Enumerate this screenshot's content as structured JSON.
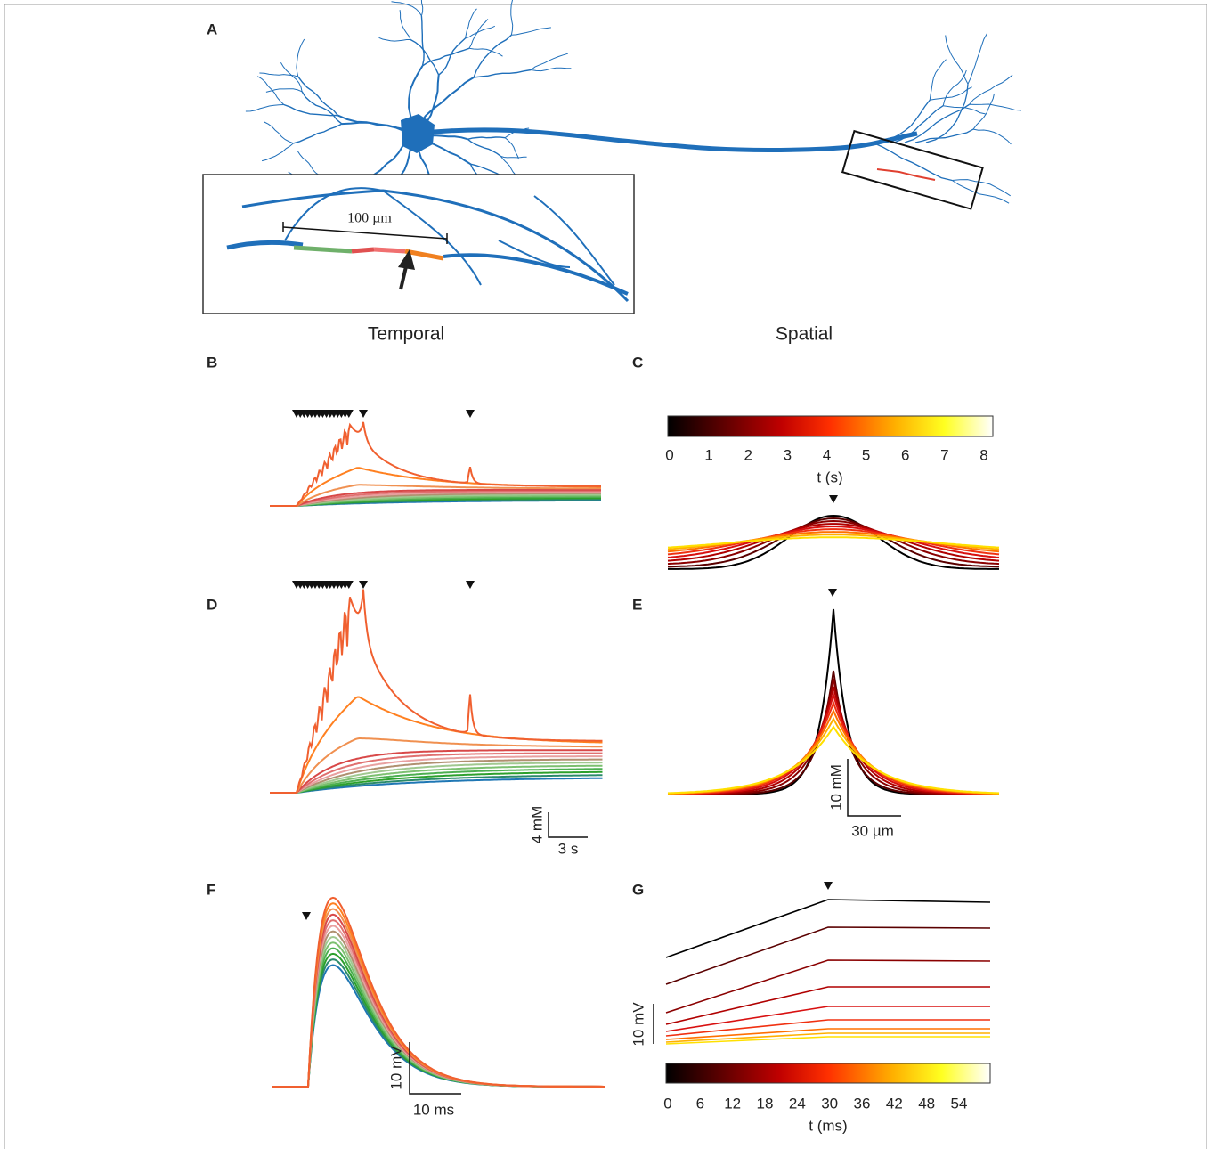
{
  "column_titles": [
    "Temporal",
    "Spatial"
  ],
  "panel_a": {
    "label": "A",
    "scale_bar": "100 µm"
  },
  "panel_b": {
    "label": "B"
  },
  "panel_c": {
    "label": "C",
    "colorbar_ticks": [
      0,
      1,
      2,
      3,
      4,
      5,
      6,
      7,
      8
    ],
    "colorbar_label": "t (s)"
  },
  "panel_d": {
    "label": "D",
    "scale_y": "4 mM",
    "scale_x": "3 s"
  },
  "panel_e": {
    "label": "E",
    "scale_y": "10 mM",
    "scale_x": "30 µm"
  },
  "panel_f": {
    "label": "F",
    "scale_y": "10 mV",
    "scale_x": "10 ms"
  },
  "panel_g": {
    "label": "G",
    "scale_y": "10 mV",
    "colorbar_ticks": [
      0,
      6,
      12,
      18,
      24,
      30,
      36,
      42,
      48,
      54
    ],
    "colorbar_label": "t (ms)"
  }
}
